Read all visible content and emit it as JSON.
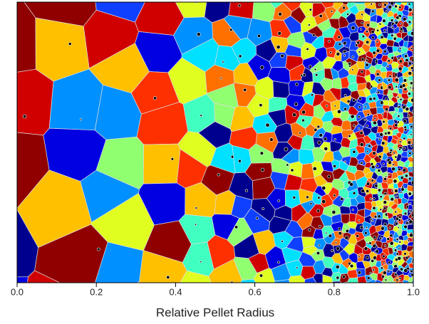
{
  "chart_data": {
    "type": "image",
    "xlabel": "Relative Pellet Radius",
    "xlim": [
      0,
      1
    ],
    "xticks": [
      {
        "value": 0,
        "label": "0.0"
      },
      0.2,
      0.4,
      0.6,
      0.8,
      {
        "value": 1,
        "label": "1.0"
      }
    ]
  }
}
